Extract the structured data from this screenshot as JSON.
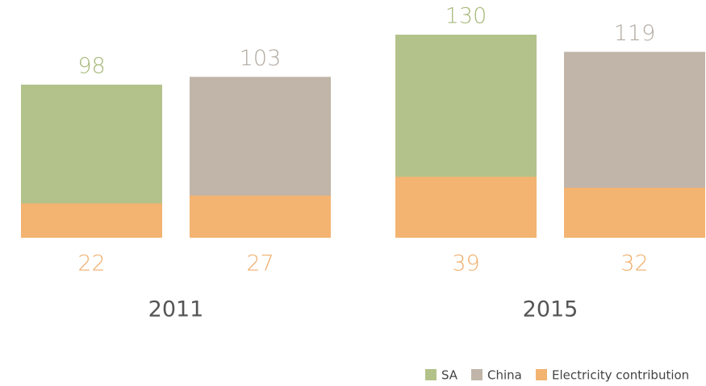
{
  "chart_data": {
    "type": "bar",
    "categories": [
      "2011",
      "2015"
    ],
    "series": [
      {
        "name": "SA",
        "color": "#b3c28a",
        "values": [
          98,
          130
        ]
      },
      {
        "name": "China",
        "color": "#c0b5a8",
        "values": [
          103,
          119
        ]
      }
    ],
    "overlay": {
      "name": "Electricity contribution",
      "color": "#f3b371",
      "values": [
        [
          22,
          39
        ],
        [
          27,
          32
        ]
      ]
    },
    "label_colors": {
      "series": [
        "#a6b97a",
        "#b2aaa1"
      ],
      "overlay": "#f0ae6c"
    }
  }
}
